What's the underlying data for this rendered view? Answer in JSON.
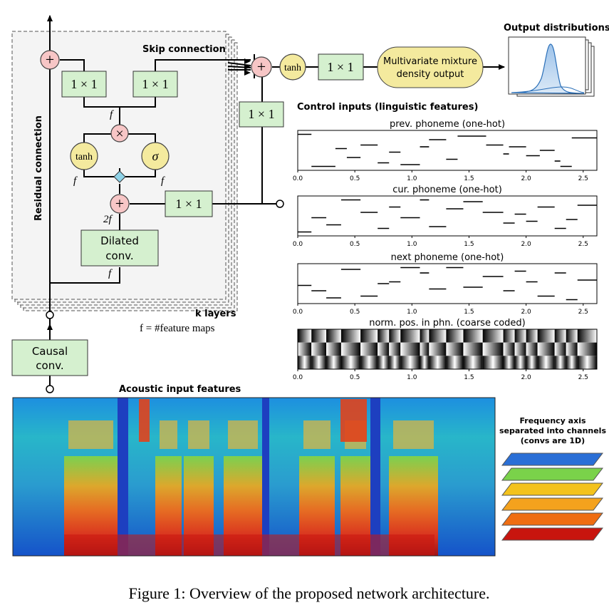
{
  "figure": {
    "caption": "Figure 1: Overview of the proposed network architecture."
  },
  "layer_stack": {
    "residual_label": "Residual connection",
    "skip_label": "Skip connection",
    "k_layers_label": "k layers",
    "feature_maps_note": "f = #feature maps",
    "conv1x1_label": "1 × 1",
    "dilated_conv_line1": "Dilated",
    "dilated_conv_line2": "conv.",
    "tanh_label": "tanh",
    "sigma_label": "σ",
    "f_label": "f",
    "two_f_label": "2f",
    "plus_symbol": "+",
    "times_symbol": "×"
  },
  "causal_conv": {
    "line1": "Causal",
    "line2": "conv."
  },
  "output_head": {
    "tanh_label": "tanh",
    "conv1x1_label": "1 × 1",
    "mixture_line1": "Multivariate mixture",
    "mixture_line2": "density output",
    "output_distributions_label": "Output distributions"
  },
  "control": {
    "title": "Control inputs (linguistic features)",
    "axis_ticks": [
      "0.0",
      "0.5",
      "1.0",
      "1.5",
      "2.0",
      "2.5"
    ],
    "panels": [
      {
        "title": "prev. phoneme (one-hot)",
        "segments": [
          [
            0.0,
            0.12,
            0.05
          ],
          [
            0.12,
            0.33,
            0.95
          ],
          [
            0.33,
            0.43,
            0.45
          ],
          [
            0.43,
            0.55,
            0.7
          ],
          [
            0.55,
            0.7,
            0.35
          ],
          [
            0.7,
            0.8,
            0.85
          ],
          [
            0.8,
            0.9,
            0.55
          ],
          [
            0.9,
            1.07,
            0.9
          ],
          [
            1.07,
            1.15,
            0.4
          ],
          [
            1.15,
            1.3,
            0.2
          ],
          [
            1.3,
            1.4,
            0.75
          ],
          [
            1.4,
            1.65,
            0.1
          ],
          [
            1.65,
            1.8,
            0.35
          ],
          [
            1.8,
            1.85,
            0.6
          ],
          [
            1.85,
            2.0,
            0.4
          ],
          [
            2.0,
            2.12,
            0.65
          ],
          [
            2.12,
            2.25,
            0.5
          ],
          [
            2.25,
            2.3,
            0.8
          ],
          [
            2.3,
            2.4,
            0.95
          ],
          [
            2.4,
            2.62,
            0.15
          ]
        ]
      },
      {
        "title": "cur. phoneme (one-hot)",
        "segments": [
          [
            0.0,
            0.12,
            0.95
          ],
          [
            0.12,
            0.25,
            0.55
          ],
          [
            0.25,
            0.38,
            0.75
          ],
          [
            0.38,
            0.55,
            0.05
          ],
          [
            0.55,
            0.7,
            0.4
          ],
          [
            0.7,
            0.8,
            0.85
          ],
          [
            0.8,
            0.9,
            0.25
          ],
          [
            0.9,
            1.07,
            0.55
          ],
          [
            1.07,
            1.15,
            0.05
          ],
          [
            1.15,
            1.3,
            0.8
          ],
          [
            1.3,
            1.45,
            0.3
          ],
          [
            1.45,
            1.62,
            0.1
          ],
          [
            1.62,
            1.8,
            0.4
          ],
          [
            1.8,
            1.9,
            0.7
          ],
          [
            1.9,
            2.0,
            0.45
          ],
          [
            2.0,
            2.1,
            0.65
          ],
          [
            2.1,
            2.25,
            0.25
          ],
          [
            2.25,
            2.35,
            0.85
          ],
          [
            2.35,
            2.45,
            0.6
          ],
          [
            2.45,
            2.62,
            0.2
          ]
        ]
      },
      {
        "title": "next phoneme (one-hot)",
        "segments": [
          [
            0.0,
            0.12,
            0.55
          ],
          [
            0.12,
            0.25,
            0.7
          ],
          [
            0.25,
            0.38,
            0.9
          ],
          [
            0.38,
            0.55,
            0.1
          ],
          [
            0.55,
            0.7,
            0.85
          ],
          [
            0.7,
            0.8,
            0.5
          ],
          [
            0.8,
            0.9,
            0.45
          ],
          [
            0.9,
            1.07,
            0.05
          ],
          [
            1.07,
            1.15,
            0.2
          ],
          [
            1.15,
            1.3,
            0.65
          ],
          [
            1.3,
            1.45,
            0.05
          ],
          [
            1.45,
            1.62,
            0.6
          ],
          [
            1.62,
            1.8,
            0.3
          ],
          [
            1.8,
            1.9,
            0.7
          ],
          [
            1.9,
            2.0,
            0.15
          ],
          [
            2.0,
            2.1,
            0.45
          ],
          [
            2.1,
            2.25,
            0.85
          ],
          [
            2.25,
            2.35,
            0.2
          ],
          [
            2.35,
            2.45,
            0.95
          ],
          [
            2.45,
            2.62,
            0.4
          ]
        ]
      }
    ],
    "coarse_panel": {
      "title": "norm. pos. in phn. (coarse coded)",
      "boundaries": [
        0.0,
        0.12,
        0.25,
        0.38,
        0.55,
        0.7,
        0.8,
        0.9,
        1.07,
        1.15,
        1.3,
        1.45,
        1.62,
        1.8,
        1.9,
        2.0,
        2.1,
        2.25,
        2.35,
        2.45,
        2.62
      ]
    }
  },
  "acoustic": {
    "title": "Acoustic input features",
    "freq_note_line1": "Frequency axis",
    "freq_note_line2": "separated into channels",
    "freq_note_line3": "(convs are 1D)",
    "channel_colors": [
      "#2a6fd6",
      "#7ad24a",
      "#f3c21c",
      "#f4a21d",
      "#ef6d12",
      "#c8150e"
    ]
  }
}
